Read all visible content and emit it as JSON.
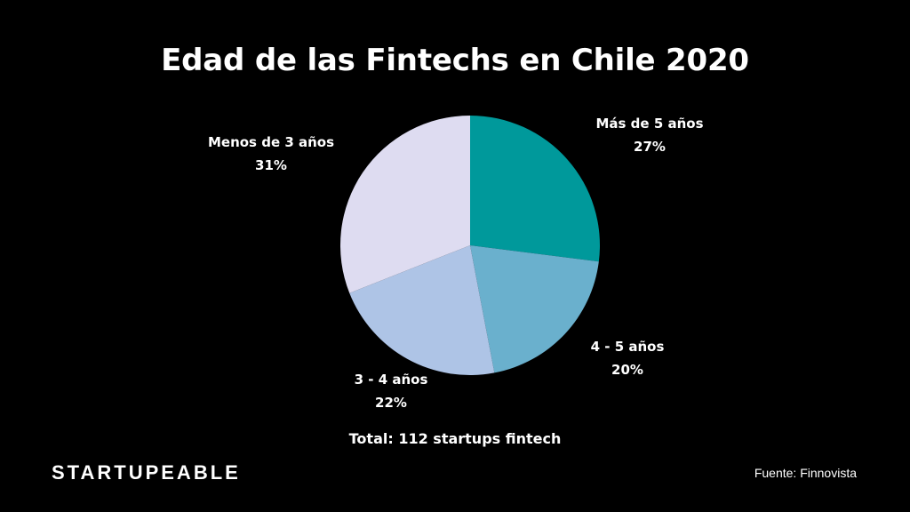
{
  "chart_data": {
    "type": "pie",
    "title": "Edad de las Fintechs en Chile 2020",
    "slices": [
      {
        "label": "Más de 5 años",
        "value": 27,
        "value_label": "27%",
        "color": "#00999b"
      },
      {
        "label": "4 - 5 años",
        "value": 20,
        "value_label": "20%",
        "color": "#6ab0cd"
      },
      {
        "label": "3 - 4 años",
        "value": 22,
        "value_label": "22%",
        "color": "#aec4e6"
      },
      {
        "label": "Menos de 3 años",
        "value": 31,
        "value_label": "31%",
        "color": "#dedcf1"
      }
    ],
    "start_angle_deg": 0,
    "direction": "clockwise",
    "annotation": "Total: 112 startups fintech"
  },
  "footer": {
    "brand": "STARTUPEABLE",
    "source": "Fuente: Finnovista"
  }
}
